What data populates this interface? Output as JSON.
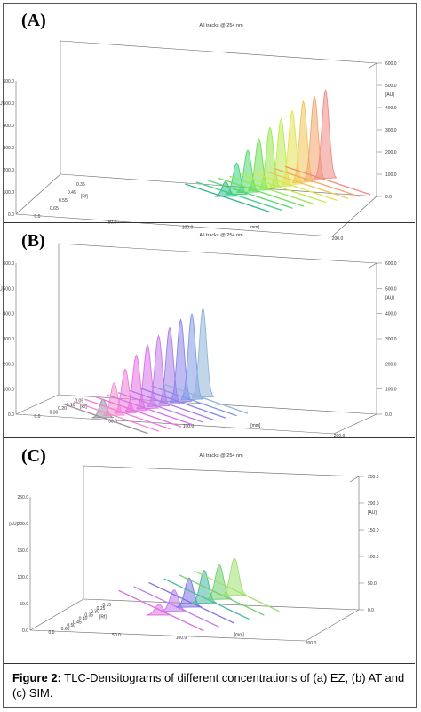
{
  "caption": {
    "label": "Figure 2:",
    "text": "TLC-Densitograms of different concentrations of (a) EZ, (b) AT and (c) SIM."
  },
  "chart_data": [
    {
      "type": "area",
      "panel": "(A)",
      "title": "All tracks @ 254 nm",
      "zlabel": "[AU]",
      "xlabel": "[mm]",
      "ylabel": "[Rf]",
      "z_ticks": [
        "0.0",
        "100.0",
        "200.0",
        "300.0",
        "400.0",
        "500.0",
        "600.0"
      ],
      "z_ticks_right": [
        "0.0",
        "100.0",
        "200.0",
        "300.0",
        "400.0",
        "500.0",
        "600.0"
      ],
      "x_ticks": [
        "0.0",
        "50.0",
        "100.0",
        "200.0"
      ],
      "y_ticks": [
        "0.35",
        "0.45",
        "0.55",
        "0.65"
      ],
      "zlim": [
        0,
        600
      ],
      "series": [
        {
          "color": "#2fb88e",
          "peak": 70
        },
        {
          "color": "#3ccf82",
          "peak": 150
        },
        {
          "color": "#52d86a",
          "peak": 200
        },
        {
          "color": "#6fe05a",
          "peak": 245
        },
        {
          "color": "#98e84e",
          "peak": 290
        },
        {
          "color": "#c0ea4c",
          "peak": 320
        },
        {
          "color": "#e3e24e",
          "peak": 350
        },
        {
          "color": "#f0c557",
          "peak": 385
        },
        {
          "color": "#f2a46c",
          "peak": 400
        },
        {
          "color": "#ef8a84",
          "peak": 420
        }
      ]
    },
    {
      "type": "area",
      "panel": "(B)",
      "title": "All tracks @ 254 nm",
      "zlabel": "[AU]",
      "xlabel": "[mm]",
      "ylabel": "[Rf]",
      "z_ticks": [
        "0.0",
        "100.0",
        "200.0",
        "300.0",
        "400.0",
        "500.0",
        "600.0"
      ],
      "z_ticks_right": [
        "0.0",
        "100.0",
        "200.0",
        "300.0",
        "400.0",
        "500.0",
        "600.0"
      ],
      "x_ticks": [
        "0.0",
        "50.0",
        "100.0",
        "200.0"
      ],
      "y_ticks": [
        "0.05",
        "0.10",
        "0.20",
        "0.30"
      ],
      "zlim": [
        0,
        600
      ],
      "series": [
        {
          "color": "#9a8fa0",
          "peak": 80
        },
        {
          "color": "#f08cc8",
          "peak": 140
        },
        {
          "color": "#f07ad8",
          "peak": 190
        },
        {
          "color": "#e86fe0",
          "peak": 240
        },
        {
          "color": "#d772e8",
          "peak": 275
        },
        {
          "color": "#c67ae8",
          "peak": 305
        },
        {
          "color": "#a67de8",
          "peak": 330
        },
        {
          "color": "#8d82e8",
          "peak": 355
        },
        {
          "color": "#7f9ae6",
          "peak": 370
        },
        {
          "color": "#8fb4d8",
          "peak": 385
        }
      ]
    },
    {
      "type": "area",
      "panel": "(C)",
      "title": "All tracks @ 254 nm",
      "zlabel": "[AU]",
      "xlabel": "[mm]",
      "ylabel": "[Rf]",
      "z_ticks": [
        "0.0",
        "50.0",
        "100.0",
        "150.0",
        "200.0",
        "250.0"
      ],
      "z_ticks_right": [
        "0.0",
        "50.0",
        "100.0",
        "150.0",
        "200.0",
        "250.0"
      ],
      "x_ticks": [
        "0.0",
        "50.0",
        "100.0",
        "200.0"
      ],
      "y_ticks": [
        "0.15",
        "0.25",
        "0.30",
        "0.35",
        "0.40",
        "0.45",
        "0.50",
        "0.60"
      ],
      "zlim": [
        0,
        250
      ],
      "series": [
        {
          "color": "#e070e0",
          "peak": 20
        },
        {
          "color": "#c07ae8",
          "peak": 40
        },
        {
          "color": "#7e72e0",
          "peak": 55
        },
        {
          "color": "#48b8a0",
          "peak": 62
        },
        {
          "color": "#70d070",
          "peak": 65
        },
        {
          "color": "#a0e070",
          "peak": 70
        }
      ]
    }
  ]
}
